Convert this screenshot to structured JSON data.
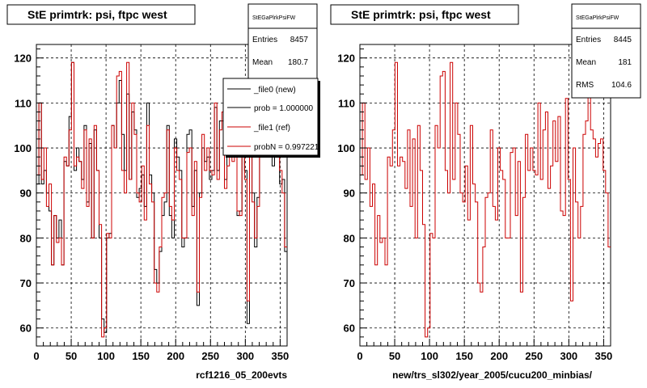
{
  "footer_text": "",
  "left_panel": {
    "title": "StE primtrk: psi, ftpc west",
    "stats": {
      "name": "StEGaPlrkPsiFW",
      "rows": [
        {
          "label": "Entries",
          "value": "8457"
        },
        {
          "label": "Mean",
          "value": "180.7"
        }
      ]
    },
    "legend": [
      {
        "label": "_file0 (new)",
        "color": "#000000"
      },
      {
        "label": "prob = 1.000000",
        "color": "#000000"
      },
      {
        "label": "_file1 (ref)",
        "color": "#cc0000"
      },
      {
        "label": "probN = 0.997221",
        "color": "#cc0000"
      }
    ],
    "xlabel": "rcf1216_05_200evts"
  },
  "right_panel": {
    "title": "StE primtrk: psi, ftpc west",
    "stats": {
      "name": "StEGaPlrkPsiFW",
      "rows": [
        {
          "label": "Entries",
          "value": "8445"
        },
        {
          "label": "Mean",
          "value": "181"
        },
        {
          "label": "RMS",
          "value": "104.6"
        }
      ]
    },
    "xlabel": "new/trs_sl302/year_2005/cucu200_minbias/"
  },
  "chart_data": [
    {
      "type": "line",
      "title": "StE primtrk: psi, ftpc west",
      "xlabel": "rcf1216_05_200evts",
      "ylabel": "",
      "xlim": [
        0,
        360
      ],
      "ylim": [
        56,
        123
      ],
      "xticks": [
        0,
        50,
        100,
        150,
        200,
        250,
        300,
        350
      ],
      "yticks": [
        60,
        70,
        80,
        90,
        100,
        110,
        120
      ],
      "grid": true,
      "bin_width": 3.6,
      "series": [
        {
          "name": "_file0 (new)",
          "color": "#000000",
          "values": [
            92,
            110,
            92,
            95,
            90,
            86,
            74,
            85,
            80,
            84,
            74,
            97,
            96,
            107,
            119,
            95,
            100,
            97,
            93,
            105,
            88,
            101,
            80,
            104,
            95,
            80,
            62,
            59,
            80,
            81,
            105,
            100,
            110,
            115,
            103,
            95,
            112,
            93,
            108,
            104,
            89,
            91,
            94,
            87,
            110,
            94,
            90,
            73,
            70,
            77,
            85,
            88,
            105,
            85,
            80,
            102,
            98,
            95,
            78,
            80,
            103,
            104,
            87,
            95,
            65,
            90,
            100,
            97,
            98,
            93,
            95,
            109,
            95,
            106,
            106,
            93,
            98,
            104,
            99,
            105,
            85,
            86,
            110,
            95,
            61,
            98,
            90,
            78,
            89,
            105,
            108,
            116,
            106,
            100,
            96,
            104,
            100,
            92,
            93,
            77
          ]
        },
        {
          "name": "_file1 (ref)",
          "color": "#cc0000",
          "values": [
            94,
            110,
            93,
            100,
            87,
            92,
            74,
            85,
            79,
            80,
            74,
            98,
            96,
            104,
            119,
            96,
            98,
            97,
            91,
            104,
            87,
            102,
            80,
            105,
            95,
            83,
            58,
            60,
            81,
            80,
            105,
            100,
            116,
            117,
            95,
            90,
            119,
            93,
            110,
            103,
            90,
            88,
            96,
            84,
            105,
            92,
            88,
            70,
            68,
            78,
            89,
            90,
            104,
            87,
            84,
            100,
            95,
            93,
            80,
            80,
            99,
            100,
            85,
            97,
            68,
            89,
            103,
            95,
            100,
            95,
            94,
            110,
            93,
            104,
            108,
            91,
            96,
            106,
            97,
            107,
            86,
            85,
            111,
            93,
            66,
            100,
            88,
            80,
            87,
            103,
            106,
            117,
            104,
            102,
            98,
            101,
            102,
            95,
            90,
            78
          ]
        }
      ]
    },
    {
      "type": "line",
      "title": "StE primtrk: psi, ftpc west",
      "xlabel": "new/trs_sl302/year_2005/cucu200_minbias/",
      "ylabel": "",
      "xlim": [
        0,
        360
      ],
      "ylim": [
        56,
        123
      ],
      "xticks": [
        0,
        50,
        100,
        150,
        200,
        250,
        300,
        350
      ],
      "yticks": [
        60,
        70,
        80,
        90,
        100,
        110,
        120
      ],
      "grid": true,
      "bin_width": 3.6,
      "series": [
        {
          "name": "",
          "color": "#cc0000",
          "values": [
            94,
            110,
            93,
            100,
            87,
            92,
            74,
            85,
            79,
            80,
            74,
            98,
            96,
            104,
            119,
            96,
            98,
            97,
            91,
            104,
            87,
            102,
            80,
            105,
            95,
            83,
            58,
            60,
            81,
            80,
            105,
            100,
            116,
            117,
            95,
            90,
            119,
            93,
            110,
            103,
            90,
            88,
            96,
            84,
            105,
            92,
            88,
            70,
            68,
            78,
            89,
            90,
            104,
            87,
            84,
            100,
            95,
            93,
            80,
            80,
            99,
            100,
            85,
            97,
            68,
            89,
            103,
            95,
            100,
            95,
            94,
            110,
            93,
            104,
            108,
            91,
            96,
            106,
            97,
            107,
            86,
            85,
            111,
            93,
            66,
            100,
            88,
            80,
            87,
            103,
            106,
            117,
            104,
            102,
            98,
            101,
            102,
            95,
            90,
            78
          ]
        }
      ]
    }
  ]
}
